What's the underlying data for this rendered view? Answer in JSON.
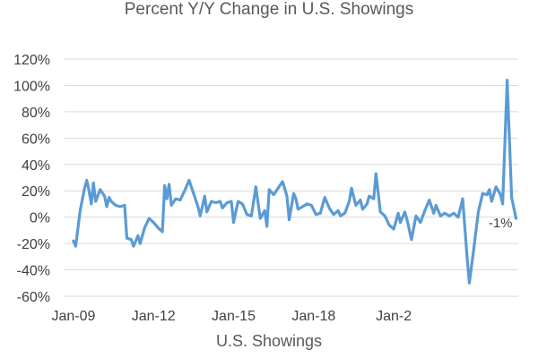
{
  "chart_data": {
    "type": "line",
    "title": "Percent Y/Y Change in U.S. Showings",
    "series": [
      {
        "name": "U.S. Showings",
        "color": "#5B9BD5",
        "points": [
          [
            "2009-01",
            -18
          ],
          [
            "2009-02",
            -22
          ],
          [
            "2009-04",
            5
          ],
          [
            "2009-06",
            22
          ],
          [
            "2009-07",
            28
          ],
          [
            "2009-08",
            20
          ],
          [
            "2009-09",
            10
          ],
          [
            "2009-10",
            26
          ],
          [
            "2009-11",
            12
          ],
          [
            "2010-01",
            21
          ],
          [
            "2010-03",
            16
          ],
          [
            "2010-04",
            8
          ],
          [
            "2010-05",
            15
          ],
          [
            "2010-06",
            12
          ],
          [
            "2010-08",
            9
          ],
          [
            "2010-10",
            8
          ],
          [
            "2010-12",
            9
          ],
          [
            "2011-01",
            -16
          ],
          [
            "2011-03",
            -17
          ],
          [
            "2011-04",
            -22
          ],
          [
            "2011-06",
            -14
          ],
          [
            "2011-07",
            -20
          ],
          [
            "2011-09",
            -8
          ],
          [
            "2011-11",
            -1
          ],
          [
            "2012-01",
            -4
          ],
          [
            "2012-03",
            -8
          ],
          [
            "2012-05",
            -11
          ],
          [
            "2012-06",
            24
          ],
          [
            "2012-07",
            14
          ],
          [
            "2012-08",
            25
          ],
          [
            "2012-09",
            9
          ],
          [
            "2012-11",
            14
          ],
          [
            "2013-01",
            13
          ],
          [
            "2013-03",
            20
          ],
          [
            "2013-05",
            28
          ],
          [
            "2013-07",
            18
          ],
          [
            "2013-09",
            8
          ],
          [
            "2013-10",
            1
          ],
          [
            "2013-12",
            16
          ],
          [
            "2014-01",
            4
          ],
          [
            "2014-03",
            12
          ],
          [
            "2014-05",
            11
          ],
          [
            "2014-07",
            12
          ],
          [
            "2014-08",
            7
          ],
          [
            "2014-10",
            11
          ],
          [
            "2014-12",
            12
          ],
          [
            "2015-01",
            -4
          ],
          [
            "2015-03",
            12
          ],
          [
            "2015-05",
            10
          ],
          [
            "2015-07",
            2
          ],
          [
            "2015-09",
            1
          ],
          [
            "2015-11",
            23
          ],
          [
            "2016-01",
            -1
          ],
          [
            "2016-03",
            5
          ],
          [
            "2016-04",
            -7
          ],
          [
            "2016-05",
            21
          ],
          [
            "2016-07",
            17
          ],
          [
            "2016-09",
            22
          ],
          [
            "2016-11",
            27
          ],
          [
            "2017-01",
            16
          ],
          [
            "2017-02",
            -2
          ],
          [
            "2017-04",
            18
          ],
          [
            "2017-05",
            14
          ],
          [
            "2017-06",
            6
          ],
          [
            "2017-08",
            8
          ],
          [
            "2017-10",
            10
          ],
          [
            "2017-12",
            9
          ],
          [
            "2018-02",
            2
          ],
          [
            "2018-04",
            3
          ],
          [
            "2018-06",
            15
          ],
          [
            "2018-08",
            7
          ],
          [
            "2018-10",
            2
          ],
          [
            "2018-12",
            5
          ],
          [
            "2019-01",
            1
          ],
          [
            "2019-03",
            3
          ],
          [
            "2019-05",
            12
          ],
          [
            "2019-06",
            22
          ],
          [
            "2019-08",
            9
          ],
          [
            "2019-10",
            13
          ],
          [
            "2019-11",
            6
          ],
          [
            "2020-01",
            10
          ],
          [
            "2020-02",
            16
          ],
          [
            "2020-04",
            14
          ],
          [
            "2020-05",
            33
          ],
          [
            "2020-07",
            4
          ],
          [
            "2020-09",
            1
          ],
          [
            "2020-11",
            -6
          ],
          [
            "2021-01",
            -9
          ],
          [
            "2021-03",
            3
          ],
          [
            "2021-04",
            -4
          ],
          [
            "2021-06",
            4
          ],
          [
            "2021-07",
            -2
          ],
          [
            "2021-09",
            -17
          ],
          [
            "2021-11",
            1
          ],
          [
            "2022-01",
            -4
          ],
          [
            "2022-03",
            5
          ],
          [
            "2022-05",
            13
          ],
          [
            "2022-07",
            3
          ],
          [
            "2022-08",
            9
          ],
          [
            "2022-10",
            1
          ],
          [
            "2022-12",
            3
          ],
          [
            "2023-02",
            1
          ],
          [
            "2023-04",
            3
          ],
          [
            "2023-06",
            0
          ],
          [
            "2023-08",
            14
          ],
          [
            "2023-10",
            -31
          ],
          [
            "2023-11",
            -50
          ],
          [
            "2024-01",
            -24
          ],
          [
            "2024-03",
            4
          ],
          [
            "2024-05",
            18
          ],
          [
            "2024-07",
            17
          ],
          [
            "2024-08",
            21
          ],
          [
            "2024-09",
            12
          ],
          [
            "2024-11",
            23
          ],
          [
            "2025-01",
            17
          ],
          [
            "2025-02",
            10
          ],
          [
            "2025-04",
            104
          ],
          [
            "2025-06",
            15
          ],
          [
            "2025-08",
            -1
          ]
        ]
      }
    ],
    "xlabel": "",
    "ylabel": "",
    "ylim": [
      -60,
      120
    ],
    "yticks": [
      -60,
      -40,
      -20,
      0,
      20,
      40,
      60,
      80,
      100,
      120
    ],
    "ytick_labels": [
      "-60%",
      "-40%",
      "-20%",
      "0%",
      "20%",
      "40%",
      "60%",
      "80%",
      "100%",
      "120%"
    ],
    "xlim": [
      "2008-09",
      "2025-09"
    ],
    "xticks": [
      {
        "date": "2009-01",
        "label": "Jan-09"
      },
      {
        "date": "2012-01",
        "label": "Jan-12"
      },
      {
        "date": "2015-01",
        "label": "Jan-15"
      },
      {
        "date": "2018-01",
        "label": "Jan-18"
      },
      {
        "date": "2021-01",
        "label": "Jan-2"
      }
    ],
    "grid": true,
    "annotations": [
      {
        "date": "2025-08",
        "value": -1,
        "text": "-1%"
      }
    ],
    "caption": "U.S. Showings"
  }
}
